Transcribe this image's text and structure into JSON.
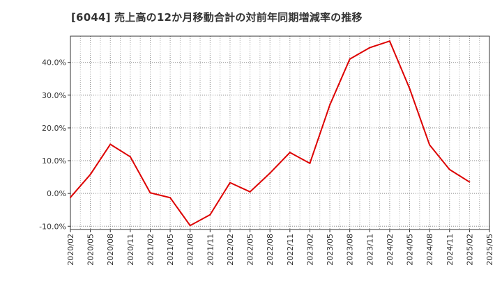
{
  "chart_data": {
    "type": "line",
    "title": "[6044]  売上高の12か月移動合計の対前年同期増減率の推移",
    "xlabel": "",
    "ylabel": "",
    "x": [
      "2020/02",
      "2020/05",
      "2020/08",
      "2020/11",
      "2021/02",
      "2021/05",
      "2021/08",
      "2021/11",
      "2022/02",
      "2022/05",
      "2022/08",
      "2022/11",
      "2023/02",
      "2023/05",
      "2023/08",
      "2023/11",
      "2024/02",
      "2024/05",
      "2024/08",
      "2024/11",
      "2025/02",
      "2025/05"
    ],
    "y_tick_labels": [
      "-10.0%",
      "0.0%",
      "10.0%",
      "20.0%",
      "30.0%",
      "40.0%"
    ],
    "ylim": [
      -11,
      48
    ],
    "grid": true,
    "legend": "none",
    "series": [
      {
        "name": "売上高の12か月移動合計の対前年同期増減率",
        "color": "#dd0000",
        "values": [
          -1.2,
          5.8,
          15.0,
          11.2,
          0.2,
          -1.3,
          -9.8,
          -6.5,
          3.3,
          0.5,
          6.2,
          12.5,
          9.2,
          27.0,
          41.0,
          44.5,
          46.5,
          32.0,
          14.8,
          7.3,
          3.5,
          null
        ]
      }
    ]
  }
}
